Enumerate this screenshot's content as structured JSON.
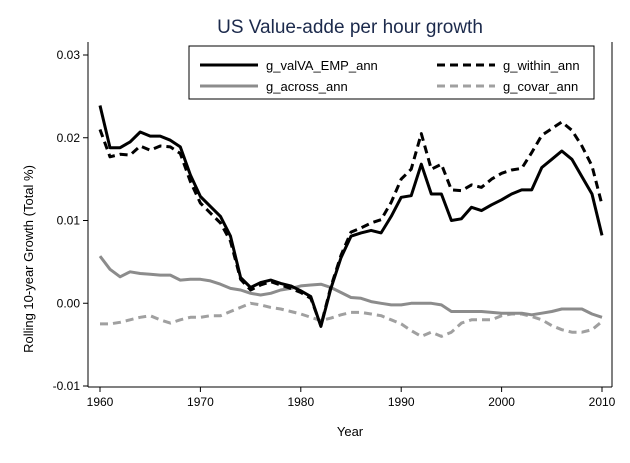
{
  "chart_data": {
    "type": "line",
    "title": "US Value-adde per hour growth",
    "xlabel": "Year",
    "ylabel": "Rolling 10-year Growth (Total %)",
    "xlim": [
      1960,
      2010
    ],
    "ylim": [
      -0.01,
      0.03
    ],
    "xticks": [
      1960,
      1970,
      1980,
      1990,
      2000,
      2010
    ],
    "yticks": [
      -0.01,
      0.0,
      0.01,
      0.02,
      0.03
    ],
    "ytick_labels": [
      "-0.01",
      "0.00",
      "0.01",
      "0.02",
      "0.03"
    ],
    "grid": false,
    "legend_position": "top",
    "legend_columns": 2,
    "series": [
      {
        "name": "g_valVA_EMP_ann",
        "color": "#000000",
        "style": "solid",
        "x": [
          1960,
          1961,
          1962,
          1963,
          1964,
          1965,
          1966,
          1967,
          1968,
          1969,
          1970,
          1971,
          1972,
          1973,
          1974,
          1975,
          1976,
          1977,
          1978,
          1979,
          1980,
          1981,
          1982,
          1983,
          1984,
          1985,
          1986,
          1987,
          1988,
          1989,
          1990,
          1991,
          1992,
          1993,
          1994,
          1995,
          1996,
          1997,
          1998,
          1999,
          2000,
          2001,
          2002,
          2003,
          2004,
          2005,
          2006,
          2007,
          2008,
          2009,
          2010
        ],
        "y": [
          0.0239,
          0.0188,
          0.0188,
          0.0195,
          0.0207,
          0.0202,
          0.0202,
          0.0197,
          0.0189,
          0.0155,
          0.0129,
          0.0117,
          0.0105,
          0.0081,
          0.0031,
          0.0019,
          0.0025,
          0.0028,
          0.0024,
          0.0021,
          0.0015,
          0.0008,
          -0.0028,
          0.0018,
          0.0055,
          0.0081,
          0.0085,
          0.0088,
          0.0085,
          0.0105,
          0.0128,
          0.013,
          0.0168,
          0.0132,
          0.0132,
          0.01,
          0.0102,
          0.0116,
          0.0112,
          0.0119,
          0.0125,
          0.0132,
          0.0137,
          0.0137,
          0.0164,
          0.0174,
          0.0184,
          0.0174,
          0.0153,
          0.0132,
          0.0082
        ]
      },
      {
        "name": "g_within_ann",
        "color": "#000000",
        "style": "dashed",
        "x": [
          1960,
          1961,
          1962,
          1963,
          1964,
          1965,
          1966,
          1967,
          1968,
          1969,
          1970,
          1971,
          1972,
          1973,
          1974,
          1975,
          1976,
          1977,
          1978,
          1979,
          1980,
          1981,
          1982,
          1983,
          1984,
          1985,
          1986,
          1987,
          1988,
          1989,
          1990,
          1991,
          1992,
          1993,
          1994,
          1995,
          1996,
          1997,
          1998,
          1999,
          2000,
          2001,
          2002,
          2003,
          2004,
          2005,
          2006,
          2007,
          2008,
          2009,
          2010
        ],
        "y": [
          0.021,
          0.0177,
          0.018,
          0.0179,
          0.019,
          0.0185,
          0.019,
          0.0189,
          0.0181,
          0.0147,
          0.0121,
          0.0109,
          0.0097,
          0.0075,
          0.0029,
          0.0016,
          0.0022,
          0.0026,
          0.0022,
          0.0018,
          0.0013,
          0.0006,
          -0.0027,
          0.002,
          0.0058,
          0.0086,
          0.0091,
          0.0097,
          0.0101,
          0.0122,
          0.015,
          0.0162,
          0.0205,
          0.0162,
          0.0168,
          0.0137,
          0.0136,
          0.0143,
          0.014,
          0.015,
          0.0157,
          0.0161,
          0.0163,
          0.0182,
          0.0203,
          0.0211,
          0.0219,
          0.0209,
          0.019,
          0.0166,
          0.0119
        ]
      },
      {
        "name": "g_across_ann",
        "color": "#8c8c8c",
        "style": "solid",
        "x": [
          1960,
          1961,
          1962,
          1963,
          1964,
          1965,
          1966,
          1967,
          1968,
          1969,
          1970,
          1971,
          1972,
          1973,
          1974,
          1975,
          1976,
          1977,
          1978,
          1979,
          1980,
          1981,
          1982,
          1983,
          1984,
          1985,
          1986,
          1987,
          1988,
          1989,
          1990,
          1991,
          1992,
          1993,
          1994,
          1995,
          1996,
          1997,
          1998,
          1999,
          2000,
          2001,
          2002,
          2003,
          2004,
          2005,
          2006,
          2007,
          2008,
          2009,
          2010
        ],
        "y": [
          0.0057,
          0.0041,
          0.0032,
          0.0038,
          0.0036,
          0.0035,
          0.0034,
          0.0034,
          0.0028,
          0.0029,
          0.0029,
          0.0027,
          0.0023,
          0.0018,
          0.0016,
          0.0012,
          0.001,
          0.0012,
          0.0016,
          0.0018,
          0.0021,
          0.0022,
          0.0023,
          0.0019,
          0.0013,
          0.0007,
          0.0006,
          0.0002,
          0.0,
          -0.0002,
          -0.0002,
          0.0,
          0.0,
          0.0,
          -0.0002,
          -0.001,
          -0.001,
          -0.001,
          -0.001,
          -0.0011,
          -0.0012,
          -0.0012,
          -0.0012,
          -0.0014,
          -0.0012,
          -0.001,
          -0.0007,
          -0.0007,
          -0.0007,
          -0.0013,
          -0.0017
        ]
      },
      {
        "name": "g_covar_ann",
        "color": "#a0a0a0",
        "style": "dashed",
        "x": [
          1960,
          1961,
          1962,
          1963,
          1964,
          1965,
          1966,
          1967,
          1968,
          1969,
          1970,
          1971,
          1972,
          1973,
          1974,
          1975,
          1976,
          1977,
          1978,
          1979,
          1980,
          1981,
          1982,
          1983,
          1984,
          1985,
          1986,
          1987,
          1988,
          1989,
          1990,
          1991,
          1992,
          1993,
          1994,
          1995,
          1996,
          1997,
          1998,
          1999,
          2000,
          2001,
          2002,
          2003,
          2004,
          2005,
          2006,
          2007,
          2008,
          2009,
          2010
        ],
        "y": [
          -0.0025,
          -0.0025,
          -0.0023,
          -0.002,
          -0.0017,
          -0.0015,
          -0.002,
          -0.0024,
          -0.002,
          -0.0017,
          -0.0017,
          -0.0015,
          -0.0015,
          -0.001,
          -0.0005,
          0.0,
          -0.0002,
          -0.0005,
          -0.0007,
          -0.001,
          -0.0013,
          -0.0017,
          -0.0021,
          -0.0018,
          -0.0014,
          -0.0011,
          -0.0011,
          -0.0013,
          -0.0015,
          -0.002,
          -0.0025,
          -0.0033,
          -0.004,
          -0.0035,
          -0.004,
          -0.0035,
          -0.0024,
          -0.002,
          -0.002,
          -0.002,
          -0.0015,
          -0.0013,
          -0.0013,
          -0.0016,
          -0.002,
          -0.0027,
          -0.0032,
          -0.0035,
          -0.0035,
          -0.0032,
          -0.0022
        ]
      }
    ]
  }
}
